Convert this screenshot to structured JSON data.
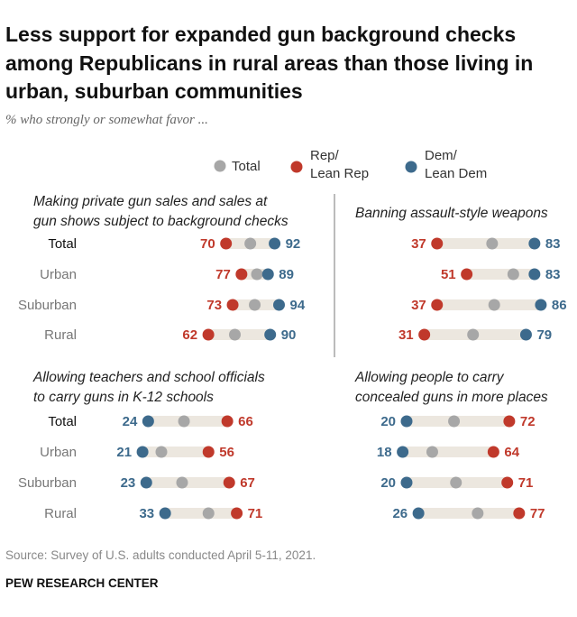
{
  "title_lines": [
    "Less support for expanded gun background checks",
    "among Republicans in rural areas than those living in",
    "urban, suburban communities"
  ],
  "subtitle": "% who strongly or somewhat favor ...",
  "legend": {
    "total": "Total",
    "rep": [
      "Rep/",
      "Lean Rep"
    ],
    "dem": [
      "Dem/",
      "Lean Dem"
    ]
  },
  "colors": {
    "total": "#a7a7a7",
    "rep": "#c0392b",
    "dem": "#3d6a8c",
    "track": "#ece7df",
    "divider": "#777777",
    "title": "#111111",
    "label": "#333333",
    "source": "#888888"
  },
  "row_labels": [
    "Total",
    "Urban",
    "Suburban",
    "Rural"
  ],
  "chart_data": [
    {
      "type": "dot",
      "title": [
        "Making private gun sales and sales at",
        "gun shows subject to background checks"
      ],
      "categories": [
        "Total",
        "Urban",
        "Suburban",
        "Rural"
      ],
      "series": [
        {
          "name": "Rep/Lean Rep",
          "values": [
            70,
            77,
            73,
            62
          ]
        },
        {
          "name": "Total",
          "values": [
            81,
            84,
            83,
            74
          ]
        },
        {
          "name": "Dem/Lean Dem",
          "values": [
            92,
            89,
            94,
            90
          ]
        }
      ]
    },
    {
      "type": "dot",
      "title": [
        "Banning assault-style weapons"
      ],
      "categories": [
        "Total",
        "Urban",
        "Suburban",
        "Rural"
      ],
      "series": [
        {
          "name": "Rep/Lean Rep",
          "values": [
            37,
            51,
            37,
            31
          ]
        },
        {
          "name": "Total",
          "values": [
            63,
            73,
            64,
            54
          ]
        },
        {
          "name": "Dem/Lean Dem",
          "values": [
            83,
            83,
            86,
            79
          ]
        }
      ]
    },
    {
      "type": "dot",
      "title": [
        "Allowing teachers and school officials",
        "to carry guns in K-12 schools"
      ],
      "categories": [
        "Total",
        "Urban",
        "Suburban",
        "Rural"
      ],
      "series": [
        {
          "name": "Dem/Lean Dem",
          "values": [
            24,
            21,
            23,
            33
          ]
        },
        {
          "name": "Total",
          "values": [
            43,
            31,
            42,
            56
          ]
        },
        {
          "name": "Rep/Lean Rep",
          "values": [
            66,
            56,
            67,
            71
          ]
        }
      ]
    },
    {
      "type": "dot",
      "title": [
        "Allowing people to carry",
        "concealed guns in more places"
      ],
      "categories": [
        "Total",
        "Urban",
        "Suburban",
        "Rural"
      ],
      "series": [
        {
          "name": "Dem/Lean Dem",
          "values": [
            20,
            18,
            20,
            26
          ]
        },
        {
          "name": "Total",
          "values": [
            44,
            33,
            45,
            56
          ]
        },
        {
          "name": "Rep/Lean Rep",
          "values": [
            72,
            64,
            71,
            77
          ]
        }
      ]
    }
  ],
  "source": "Source: Survey of U.S. adults conducted April 5-11, 2021.",
  "footer": "PEW RESEARCH CENTER"
}
